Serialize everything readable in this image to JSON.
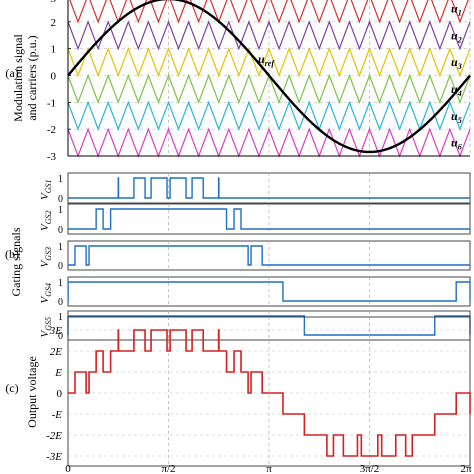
{
  "colors": {
    "carriers": [
      "#d32f2f",
      "#7b3fa0",
      "#e6c200",
      "#7cc34a",
      "#28b5d6",
      "#d63fc2"
    ],
    "reference": "#000000",
    "gating": "#1f6fc2",
    "output": "#d42020",
    "grid": "#b9b9b9"
  },
  "panel_labels": [
    "(a)",
    "(b)",
    "(c)"
  ],
  "chart_data": [
    {
      "type": "line",
      "name_label": "(a)",
      "ylabel": [
        "Modulation signal",
        "and carriers (p.u.)"
      ],
      "yticks": [
        "3",
        "2",
        "1",
        "0",
        "-1",
        "-2",
        "-3"
      ],
      "ylim": [
        -3,
        3
      ],
      "xlim": [
        0,
        6.2832
      ],
      "carrier_cycles": 20,
      "carriers": [
        {
          "label": "u",
          "sub": "1",
          "band": [
            2,
            3
          ]
        },
        {
          "label": "u",
          "sub": "2",
          "band": [
            1,
            2
          ]
        },
        {
          "label": "u",
          "sub": "3",
          "band": [
            0,
            1
          ]
        },
        {
          "label": "u",
          "sub": "4",
          "band": [
            -1,
            0
          ]
        },
        {
          "label": "u",
          "sub": "5",
          "band": [
            -2,
            -1
          ]
        },
        {
          "label": "u",
          "sub": "6",
          "band": [
            -3,
            -2
          ]
        }
      ],
      "reference": {
        "label": "u",
        "sub": "ref",
        "amplitude": 2.85,
        "shape": "sine"
      }
    },
    {
      "type": "line",
      "name_label": "(b)",
      "ylabel": "Gating signals",
      "yticks": [
        "1",
        "0"
      ],
      "signals": [
        {
          "label": "V",
          "sub": "GS1",
          "threshold": 2
        },
        {
          "label": "V",
          "sub": "GS2",
          "threshold": 1
        },
        {
          "label": "V",
          "sub": "GS3",
          "threshold": 0
        },
        {
          "label": "V",
          "sub": "GS4",
          "threshold": -1
        },
        {
          "label": "V",
          "sub": "GS5",
          "threshold": -2
        }
      ]
    },
    {
      "type": "line",
      "name_label": "(c)",
      "ylabel": "Output voltage",
      "yticks": [
        "3E",
        "2E",
        "E",
        "0",
        "-E",
        "-2E",
        "-3E"
      ],
      "ylim": [
        -3,
        3
      ],
      "xticks": [
        "0",
        "π/2",
        "π",
        "3π/2",
        "2π"
      ],
      "xlim": [
        0,
        6.2832
      ]
    }
  ]
}
